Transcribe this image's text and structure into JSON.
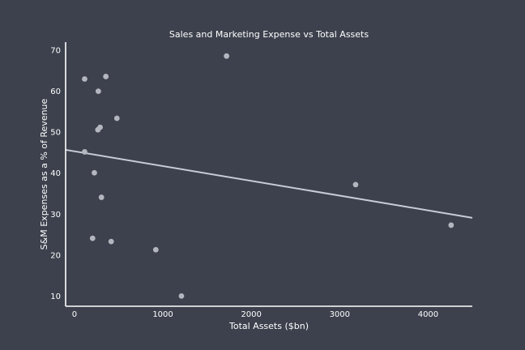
{
  "chart_data": {
    "type": "scatter",
    "title": "Sales and Marketing Expense vs Total Assets",
    "xlabel": "Total Assets ($bn)",
    "ylabel": "S&M Expenses as a % of Revenue",
    "xlim": [
      -100,
      4500
    ],
    "ylim": [
      7.5,
      72
    ],
    "xticks": [
      0,
      1000,
      2000,
      3000,
      4000
    ],
    "yticks": [
      10,
      20,
      30,
      40,
      50,
      60,
      70
    ],
    "grid": false,
    "points": [
      {
        "x": 115,
        "y": 63.0
      },
      {
        "x": 355,
        "y": 63.6
      },
      {
        "x": 270,
        "y": 60.0
      },
      {
        "x": 1720,
        "y": 68.6
      },
      {
        "x": 480,
        "y": 53.4
      },
      {
        "x": 290,
        "y": 51.2
      },
      {
        "x": 265,
        "y": 50.6
      },
      {
        "x": 115,
        "y": 45.2
      },
      {
        "x": 225,
        "y": 40.1
      },
      {
        "x": 3180,
        "y": 37.2
      },
      {
        "x": 305,
        "y": 34.1
      },
      {
        "x": 4260,
        "y": 27.3
      },
      {
        "x": 205,
        "y": 24.1
      },
      {
        "x": 415,
        "y": 23.3
      },
      {
        "x": 920,
        "y": 21.3
      },
      {
        "x": 1210,
        "y": 10.0
      }
    ],
    "trendline": {
      "x": [
        -100,
        4500
      ],
      "y": [
        45.7,
        29.1
      ]
    },
    "colors": {
      "background": "#3c414d",
      "points": "#b3b6be",
      "trendline": "#c8cbd8",
      "axis": "#ffffff",
      "text": "#ffffff"
    }
  }
}
